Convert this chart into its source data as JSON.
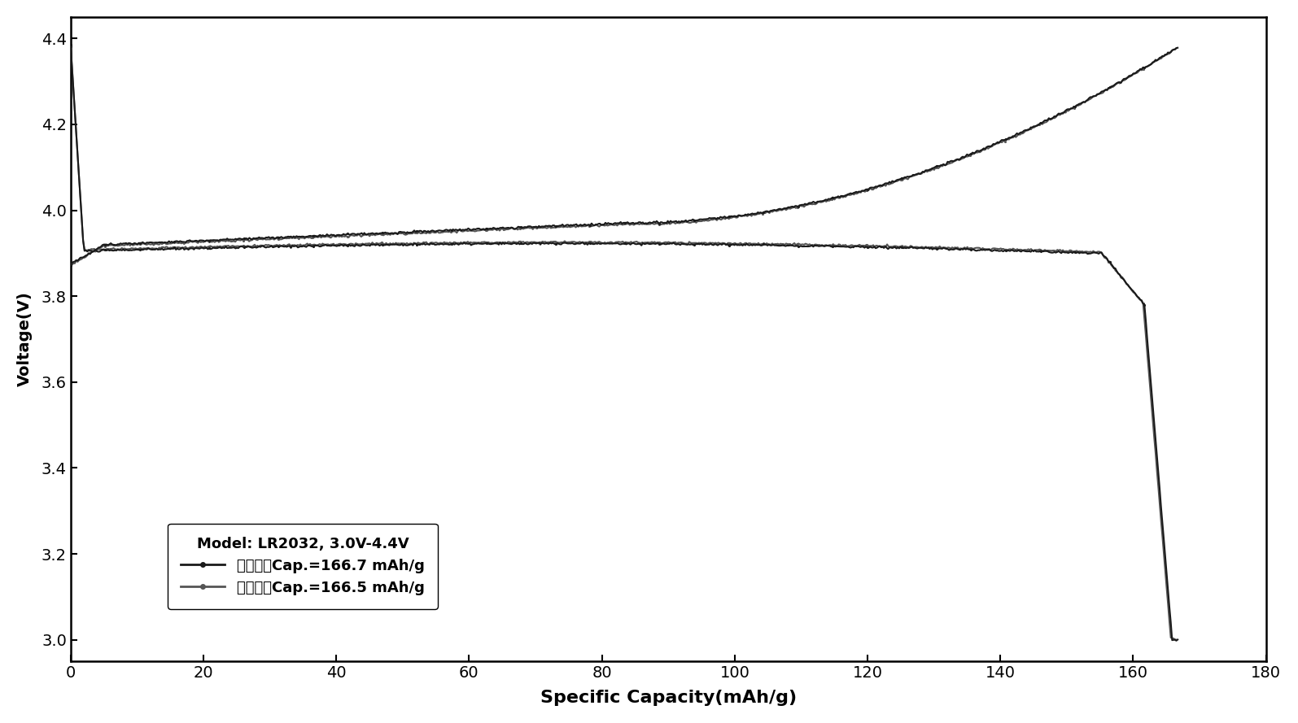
{
  "title": "",
  "xlabel": "Specific Capacity(mAh/g)",
  "ylabel": "Voltage(V)",
  "xlim": [
    0,
    180
  ],
  "ylim": [
    2.95,
    4.45
  ],
  "xticks": [
    0,
    20,
    40,
    60,
    80,
    100,
    120,
    140,
    160,
    180
  ],
  "yticks": [
    3.0,
    3.2,
    3.4,
    3.6,
    3.8,
    4.0,
    4.2,
    4.4
  ],
  "legend_title": "Model: LR2032, 3.0V-4.4V",
  "legend_line1": "改性前，Cap.=166.7 mAh/g",
  "legend_line2": "改性后，Cap.=166.5 mAh/g",
  "line_color1": "#1a1a1a",
  "line_color2": "#555555",
  "background_color": "#ffffff",
  "xlabel_fontsize": 16,
  "ylabel_fontsize": 14,
  "tick_fontsize": 14,
  "legend_fontsize": 13
}
